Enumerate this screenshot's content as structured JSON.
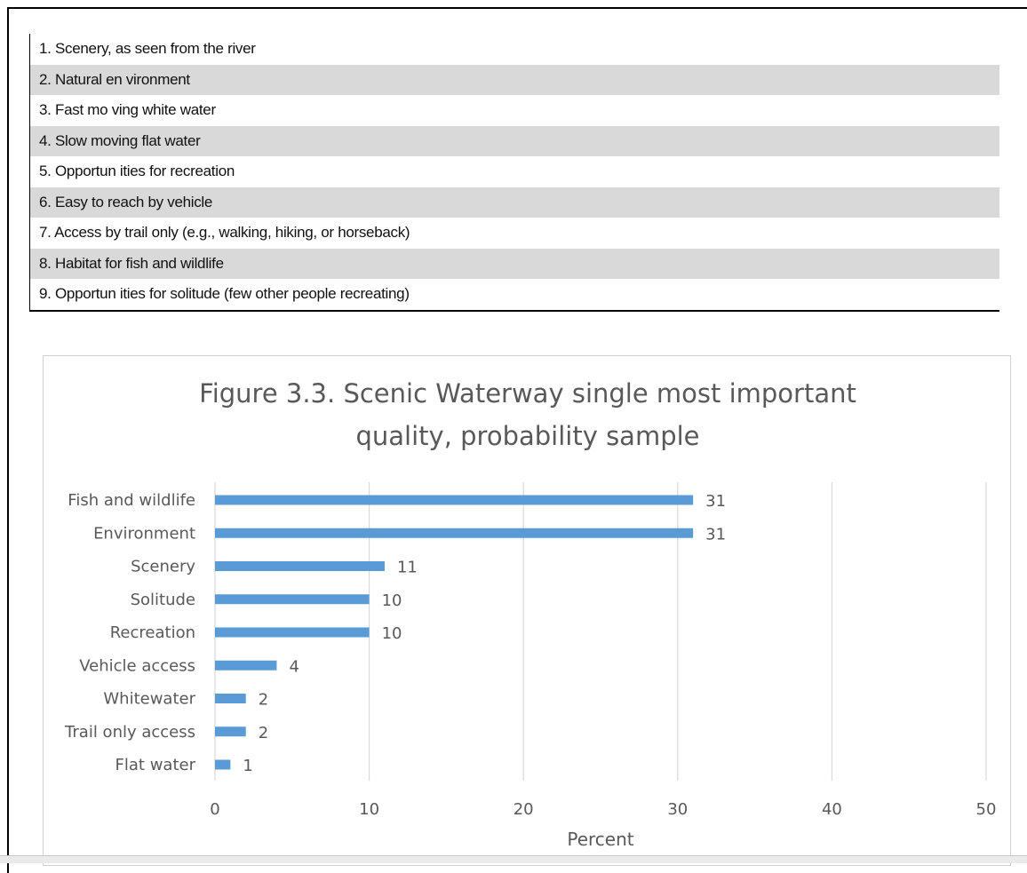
{
  "list": {
    "items": [
      "1. Scenery, as seen from the river",
      "2. Natural en vironment",
      "3. Fast mo ving white water",
      "4. Slow moving flat water",
      "5. Opportun ities for recreation",
      "6. Easy to reach by vehicle",
      "7. Access by trail only (e.g., walking, hiking, or horseback)",
      "8. Habitat for fish and wildlife",
      "9. Opportun ities for solitude (few other people recreating)"
    ]
  },
  "chart_data": {
    "type": "bar",
    "orientation": "horizontal",
    "title_lines": [
      "Figure 3.3.  Scenic Waterway single most important",
      "quality,  probability sample"
    ],
    "categories": [
      "Fish and wildlife",
      "Environment",
      "Scenery",
      "Solitude",
      "Recreation",
      "Vehicle access",
      "Whitewater",
      "Trail only access",
      "Flat water"
    ],
    "values": [
      31,
      31,
      11,
      10,
      10,
      4,
      2,
      2,
      1
    ],
    "data_labels": [
      "31",
      "31",
      "11",
      "10",
      "10",
      "4",
      "2",
      "2",
      "1"
    ],
    "xlabel": "Percent",
    "ylabel": "",
    "xlim": [
      0,
      50
    ],
    "xticks": [
      0,
      10,
      20,
      30,
      40,
      50
    ],
    "grid": true,
    "bar_color": "#5b9bd5",
    "grid_color": "#d9d9d9",
    "text_color": "#595959"
  }
}
